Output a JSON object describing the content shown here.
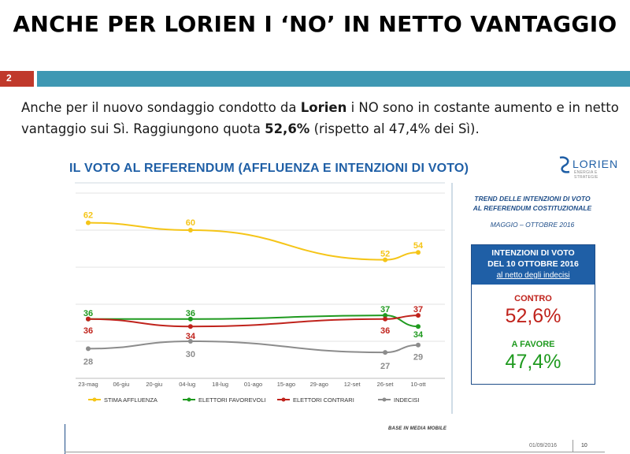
{
  "slide": {
    "title": "ANCHE PER LORIEN I ‘NO’ IN NETTO VANTAGGIO",
    "page_number": "2",
    "intro": {
      "p1": "Anche per il nuovo sondaggio condotto da ",
      "brand": "Lorien",
      "p2": " i NO sono in costante aumento e in netto vantaggio sui Sì. Raggiungono quota ",
      "value": "52,6%",
      "p3": " (rispetto al 47,4% dei Sì)."
    }
  },
  "logo": {
    "name": "LORIEN",
    "tagline": "ENERGIA E STRATEGIE"
  },
  "side": {
    "trend_line1": "TREND DELLE INTENZIONI DI VOTO",
    "trend_line2": "AL REFERENDUM COSTITUZIONALE",
    "period": "MAGGIO – OTTOBRE 2016",
    "box_line1": "INTENZIONI DI VOTO",
    "box_line2": "DEL 10 OTTOBRE 2016",
    "box_line3": "al netto degli indecisi",
    "contro_label": "CONTRO",
    "contro_value": "52,6%",
    "favore_label": "A FAVORE",
    "favore_value": "47,4%"
  },
  "footer": {
    "base_note": "BASE IN MEDIA MOBILE",
    "date": "01/09/2016",
    "page": "10"
  },
  "chart_data": {
    "type": "line",
    "title": "IL VOTO AL REFERENDUM (AFFLUENZA E INTENZIONI DI VOTO)",
    "categories": [
      "23-mag",
      "06-giu",
      "20-giu",
      "04-lug",
      "18-lug",
      "01-ago",
      "15-ago",
      "29-ago",
      "12-set",
      "26-set",
      "10-ott"
    ],
    "ylim": [
      20,
      70
    ],
    "series": [
      {
        "name": "STIMA AFFLUENZA",
        "color": "#f5c518",
        "points": [
          {
            "x": 0,
            "y": 62
          },
          {
            "x": 3.1,
            "y": 60
          },
          {
            "x": 9,
            "y": 52
          },
          {
            "x": 10,
            "y": 54
          }
        ],
        "labels": [
          "62",
          "60",
          "52",
          "54"
        ]
      },
      {
        "name": "ELETTORI FAVOREVOLI",
        "color": "#1f9a1f",
        "points": [
          {
            "x": 0,
            "y": 36
          },
          {
            "x": 3.1,
            "y": 36
          },
          {
            "x": 9,
            "y": 37
          },
          {
            "x": 10,
            "y": 34
          }
        ],
        "labels": [
          "36",
          "36",
          "37",
          "34"
        ]
      },
      {
        "name": "ELETTORI CONTRARI",
        "color": "#c0231c",
        "points": [
          {
            "x": 0,
            "y": 36
          },
          {
            "x": 3.1,
            "y": 34
          },
          {
            "x": 9,
            "y": 36
          },
          {
            "x": 10,
            "y": 37
          }
        ],
        "labels": [
          "36",
          "34",
          "36",
          "37"
        ]
      },
      {
        "name": "INDECISI",
        "color": "#8c8c8c",
        "points": [
          {
            "x": 0,
            "y": 28
          },
          {
            "x": 3.1,
            "y": 30
          },
          {
            "x": 9,
            "y": 27
          },
          {
            "x": 10,
            "y": 29
          }
        ],
        "labels": [
          "28",
          "30",
          "27",
          "29"
        ]
      }
    ],
    "grid": true,
    "legend": "bottom"
  }
}
